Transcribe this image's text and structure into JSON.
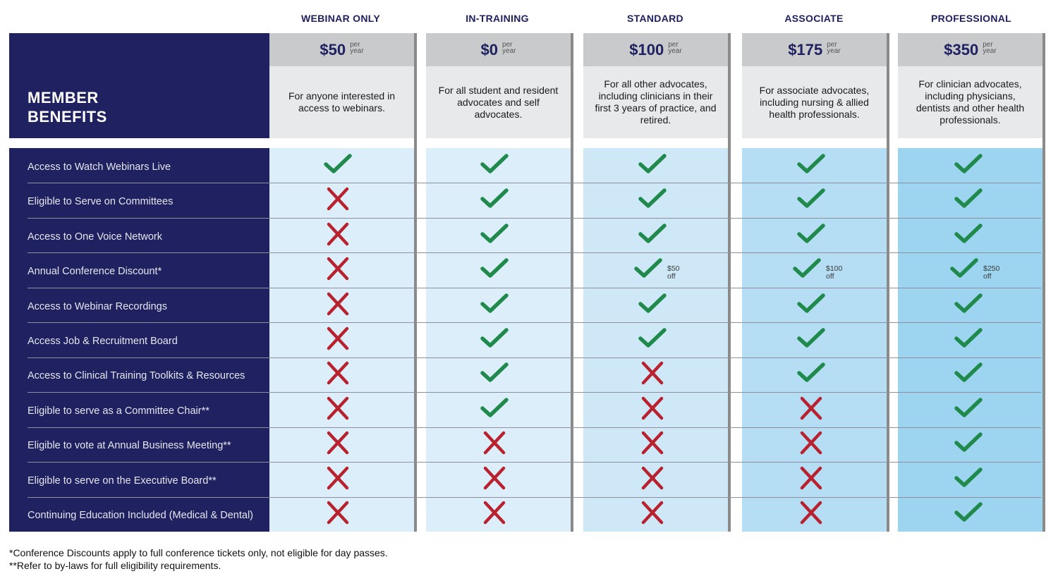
{
  "header_title_line1": "MEMBER",
  "header_title_line2": "BENEFITS",
  "colors": {
    "navy": "#1f2160",
    "check": "#1f8a4c",
    "cross": "#b8222e"
  },
  "tiers": [
    {
      "name": "WEBINAR ONLY",
      "price": "$50",
      "per": "per",
      "unit": "year",
      "description": "For anyone interested in access to webinars.",
      "bg": "#dceef9"
    },
    {
      "name": "IN-TRAINING",
      "price": "$0",
      "per": "per",
      "unit": "year",
      "description": "For all student and resident advocates and self advocates.",
      "bg": "#dceef9"
    },
    {
      "name": "STANDARD",
      "price": "$100",
      "per": "per",
      "unit": "year",
      "description": "For all other advocates, including clinicians in their first 3 years of practice, and retired.",
      "bg": "#cfe8f7"
    },
    {
      "name": "ASSOCIATE",
      "price": "$175",
      "per": "per",
      "unit": "year",
      "description": "For associate advocates, including nursing & allied health professionals.",
      "bg": "#b5ddf4"
    },
    {
      "name": "PROFESSIONAL",
      "price": "$350",
      "per": "per",
      "unit": "year",
      "description": "For clinician advocates, including physicians, dentists and other health professionals.",
      "bg": "#9dd4f0"
    }
  ],
  "benefits": [
    {
      "label": "Access to Watch Webinars Live",
      "marks": [
        "check",
        "check",
        "check",
        "check",
        "check"
      ]
    },
    {
      "label": "Eligible to Serve on Committees",
      "marks": [
        "cross",
        "check",
        "check",
        "check",
        "check"
      ]
    },
    {
      "label": "Access to One Voice Network",
      "marks": [
        "cross",
        "check",
        "check",
        "check",
        "check"
      ]
    },
    {
      "label": "Annual Conference Discount*",
      "marks": [
        "cross",
        "check",
        "check",
        "check",
        "check"
      ],
      "discounts": [
        null,
        null,
        [
          "$50",
          "off"
        ],
        [
          "$100",
          "off"
        ],
        [
          "$250",
          "off"
        ]
      ]
    },
    {
      "label": "Access to Webinar Recordings",
      "marks": [
        "cross",
        "check",
        "check",
        "check",
        "check"
      ]
    },
    {
      "label": "Access Job & Recruitment Board",
      "marks": [
        "cross",
        "check",
        "check",
        "check",
        "check"
      ]
    },
    {
      "label": "Access to Clinical Training Toolkits & Resources",
      "marks": [
        "cross",
        "check",
        "cross",
        "check",
        "check"
      ]
    },
    {
      "label": "Eligible to serve as a Committee Chair**",
      "marks": [
        "cross",
        "check",
        "cross",
        "cross",
        "check"
      ]
    },
    {
      "label": "Eligible to vote at Annual Business Meeting**",
      "marks": [
        "cross",
        "cross",
        "cross",
        "cross",
        "check"
      ]
    },
    {
      "label": "Eligible to serve on the Executive Board**",
      "marks": [
        "cross",
        "cross",
        "cross",
        "cross",
        "check"
      ]
    },
    {
      "label": "Continuing Education Included (Medical & Dental)",
      "marks": [
        "cross",
        "cross",
        "cross",
        "cross",
        "check"
      ]
    }
  ],
  "footnotes": [
    "*Conference Discounts apply to full conference tickets only, not eligible for day passes.",
    "**Refer to by-laws for full eligibility requirements."
  ]
}
